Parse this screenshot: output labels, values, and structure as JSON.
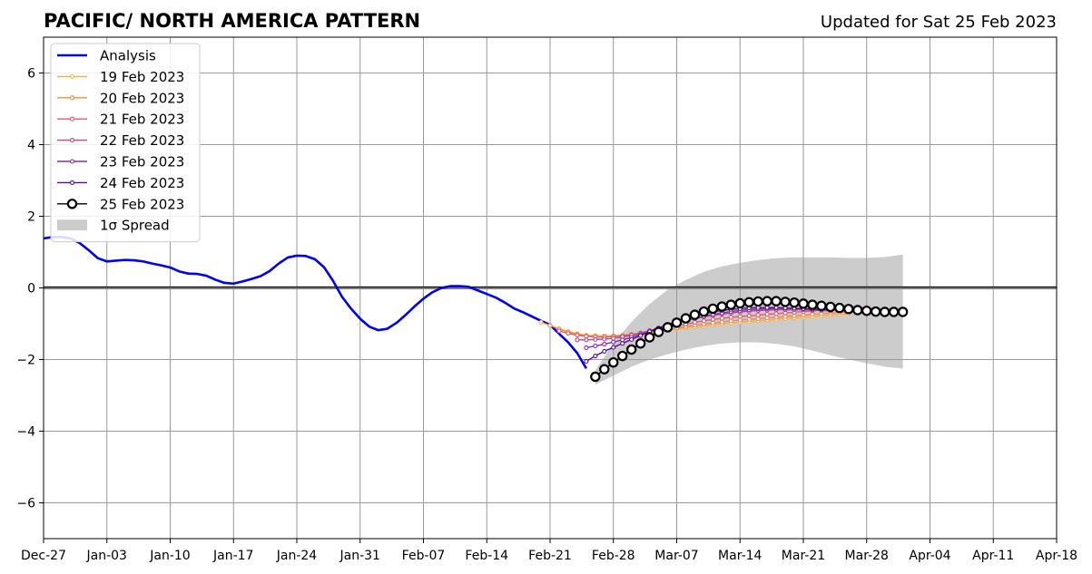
{
  "header": {
    "title": "PACIFIC/ NORTH AMERICA PATTERN",
    "updated": "Updated for Sat 25 Feb 2023"
  },
  "chart_data": {
    "type": "line",
    "title": "PACIFIC/ NORTH AMERICA PATTERN",
    "subtitle": "Updated for Sat 25 Feb 2023",
    "xlabel": "",
    "ylabel": "",
    "xlim": [
      "2022-12-27",
      "2023-04-18"
    ],
    "ylim": [
      -7,
      7
    ],
    "x_tick_labels": [
      "Dec-27",
      "Jan-03",
      "Jan-10",
      "Jan-17",
      "Jan-24",
      "Jan-31",
      "Feb-07",
      "Feb-14",
      "Feb-21",
      "Feb-28",
      "Mar-07",
      "Mar-14",
      "Mar-21",
      "Mar-28",
      "Apr-04",
      "Apr-11",
      "Apr-18"
    ],
    "x_tick_dates": [
      "2022-12-27",
      "2023-01-03",
      "2023-01-10",
      "2023-01-17",
      "2023-01-24",
      "2023-01-31",
      "2023-02-07",
      "2023-02-14",
      "2023-02-21",
      "2023-02-28",
      "2023-03-07",
      "2023-03-14",
      "2023-03-21",
      "2023-03-28",
      "2023-04-04",
      "2023-04-11",
      "2023-04-18"
    ],
    "y_ticks": [
      -6,
      -4,
      -2,
      0,
      2,
      4,
      6
    ],
    "y_tick_labels": [
      "−6",
      "−4",
      "−2",
      "0",
      "2",
      "4",
      "6"
    ],
    "grid": true,
    "legend_position": "top-left",
    "zero_line": true,
    "colors": {
      "Analysis": "#0000ee",
      "19 Feb 2023": "#fbb040",
      "20 Feb 2023": "#f08a4b",
      "21 Feb 2023": "#e05c6a",
      "22 Feb 2023": "#b8448a",
      "23 Feb 2023": "#8a2bb0",
      "24 Feb 2023": "#52118a",
      "25 Feb 2023": "#000000",
      "spread": "#cccccc",
      "grid": "#999999"
    },
    "spread": {
      "name": "1σ Spread",
      "x": [
        "2023-02-26",
        "2023-02-28",
        "2023-03-02",
        "2023-03-04",
        "2023-03-06",
        "2023-03-08",
        "2023-03-10",
        "2023-03-12",
        "2023-03-14",
        "2023-03-16",
        "2023-03-18",
        "2023-03-20",
        "2023-03-22",
        "2023-03-24",
        "2023-03-26",
        "2023-03-28",
        "2023-03-30",
        "2023-04-01"
      ],
      "upper": [
        -2.3,
        -1.55,
        -0.95,
        -0.45,
        -0.05,
        0.22,
        0.45,
        0.6,
        0.7,
        0.78,
        0.83,
        0.85,
        0.85,
        0.85,
        0.84,
        0.84,
        0.86,
        0.93
      ],
      "lower": [
        -2.7,
        -2.45,
        -2.2,
        -2.0,
        -1.85,
        -1.72,
        -1.62,
        -1.55,
        -1.52,
        -1.52,
        -1.56,
        -1.63,
        -1.75,
        -1.88,
        -2.0,
        -2.1,
        -2.2,
        -2.25
      ]
    },
    "series": [
      {
        "name": "Analysis",
        "marker": "none",
        "x": [
          "2022-12-27",
          "2022-12-28",
          "2022-12-29",
          "2022-12-30",
          "2022-12-31",
          "2023-01-01",
          "2023-01-02",
          "2023-01-03",
          "2023-01-04",
          "2023-01-05",
          "2023-01-06",
          "2023-01-07",
          "2023-01-08",
          "2023-01-09",
          "2023-01-10",
          "2023-01-11",
          "2023-01-12",
          "2023-01-13",
          "2023-01-14",
          "2023-01-15",
          "2023-01-16",
          "2023-01-17",
          "2023-01-18",
          "2023-01-19",
          "2023-01-20",
          "2023-01-21",
          "2023-01-22",
          "2023-01-23",
          "2023-01-24",
          "2023-01-25",
          "2023-01-26",
          "2023-01-27",
          "2023-01-28",
          "2023-01-29",
          "2023-01-30",
          "2023-01-31",
          "2023-02-01",
          "2023-02-02",
          "2023-02-03",
          "2023-02-04",
          "2023-02-05",
          "2023-02-06",
          "2023-02-07",
          "2023-02-08",
          "2023-02-09",
          "2023-02-10",
          "2023-02-11",
          "2023-02-12",
          "2023-02-13",
          "2023-02-14",
          "2023-02-15",
          "2023-02-16",
          "2023-02-17",
          "2023-02-18",
          "2023-02-19",
          "2023-02-20",
          "2023-02-21",
          "2023-02-22",
          "2023-02-23",
          "2023-02-24",
          "2023-02-25"
        ],
        "values": [
          1.38,
          1.42,
          1.42,
          1.38,
          1.25,
          1.05,
          0.83,
          0.74,
          0.76,
          0.78,
          0.77,
          0.74,
          0.68,
          0.63,
          0.57,
          0.46,
          0.4,
          0.39,
          0.34,
          0.23,
          0.14,
          0.12,
          0.18,
          0.25,
          0.33,
          0.47,
          0.68,
          0.85,
          0.9,
          0.89,
          0.8,
          0.58,
          0.2,
          -0.25,
          -0.58,
          -0.86,
          -1.08,
          -1.18,
          -1.14,
          -0.98,
          -0.76,
          -0.52,
          -0.3,
          -0.12,
          0.0,
          0.05,
          0.05,
          0.03,
          -0.07,
          -0.17,
          -0.27,
          -0.41,
          -0.57,
          -0.68,
          -0.8,
          -0.92,
          -1.03,
          -1.28,
          -1.52,
          -1.82,
          -2.25
        ]
      },
      {
        "name": "19 Feb 2023",
        "marker": "small",
        "x": [
          "2023-02-20",
          "2023-02-21",
          "2023-02-22",
          "2023-02-23",
          "2023-02-24",
          "2023-02-25",
          "2023-02-26",
          "2023-02-27",
          "2023-02-28",
          "2023-03-01",
          "2023-03-02",
          "2023-03-03",
          "2023-03-04",
          "2023-03-05",
          "2023-03-06",
          "2023-03-07",
          "2023-03-08",
          "2023-03-09",
          "2023-03-10",
          "2023-03-11",
          "2023-03-12",
          "2023-03-13",
          "2023-03-14",
          "2023-03-15",
          "2023-03-16",
          "2023-03-17",
          "2023-03-18",
          "2023-03-19",
          "2023-03-20",
          "2023-03-21",
          "2023-03-22",
          "2023-03-23",
          "2023-03-24",
          "2023-03-25",
          "2023-03-26"
        ],
        "values": [
          -0.96,
          -1.05,
          -1.14,
          -1.22,
          -1.28,
          -1.32,
          -1.33,
          -1.34,
          -1.33,
          -1.32,
          -1.3,
          -1.27,
          -1.24,
          -1.21,
          -1.18,
          -1.15,
          -1.12,
          -1.09,
          -1.06,
          -1.03,
          -1.0,
          -0.98,
          -0.96,
          -0.94,
          -0.92,
          -0.9,
          -0.88,
          -0.86,
          -0.84,
          -0.82,
          -0.8,
          -0.78,
          -0.76,
          -0.74,
          -0.72
        ]
      },
      {
        "name": "20 Feb 2023",
        "marker": "small",
        "x": [
          "2023-02-21",
          "2023-02-22",
          "2023-02-23",
          "2023-02-24",
          "2023-02-25",
          "2023-02-26",
          "2023-02-27",
          "2023-02-28",
          "2023-03-01",
          "2023-03-02",
          "2023-03-03",
          "2023-03-04",
          "2023-03-05",
          "2023-03-06",
          "2023-03-07",
          "2023-03-08",
          "2023-03-09",
          "2023-03-10",
          "2023-03-11",
          "2023-03-12",
          "2023-03-13",
          "2023-03-14",
          "2023-03-15",
          "2023-03-16",
          "2023-03-17",
          "2023-03-18",
          "2023-03-19",
          "2023-03-20",
          "2023-03-21",
          "2023-03-22",
          "2023-03-23",
          "2023-03-24",
          "2023-03-25",
          "2023-03-26",
          "2023-03-27"
        ],
        "values": [
          -1.05,
          -1.15,
          -1.23,
          -1.3,
          -1.34,
          -1.36,
          -1.37,
          -1.36,
          -1.34,
          -1.31,
          -1.28,
          -1.24,
          -1.2,
          -1.16,
          -1.12,
          -1.08,
          -1.04,
          -1.01,
          -0.98,
          -0.95,
          -0.92,
          -0.9,
          -0.88,
          -0.86,
          -0.84,
          -0.82,
          -0.8,
          -0.78,
          -0.76,
          -0.74,
          -0.72,
          -0.7,
          -0.68,
          -0.67,
          -0.66
        ]
      },
      {
        "name": "21 Feb 2023",
        "marker": "small",
        "x": [
          "2023-02-22",
          "2023-02-23",
          "2023-02-24",
          "2023-02-25",
          "2023-02-26",
          "2023-02-27",
          "2023-02-28",
          "2023-03-01",
          "2023-03-02",
          "2023-03-03",
          "2023-03-04",
          "2023-03-05",
          "2023-03-06",
          "2023-03-07",
          "2023-03-08",
          "2023-03-09",
          "2023-03-10",
          "2023-03-11",
          "2023-03-12",
          "2023-03-13",
          "2023-03-14",
          "2023-03-15",
          "2023-03-16",
          "2023-03-17",
          "2023-03-18",
          "2023-03-19",
          "2023-03-20",
          "2023-03-21",
          "2023-03-22",
          "2023-03-23",
          "2023-03-24",
          "2023-03-25",
          "2023-03-26",
          "2023-03-27",
          "2023-03-28"
        ],
        "values": [
          -1.2,
          -1.27,
          -1.32,
          -1.35,
          -1.37,
          -1.37,
          -1.36,
          -1.33,
          -1.3,
          -1.26,
          -1.21,
          -1.16,
          -1.11,
          -1.06,
          -1.01,
          -0.96,
          -0.92,
          -0.88,
          -0.85,
          -0.82,
          -0.8,
          -0.78,
          -0.76,
          -0.74,
          -0.72,
          -0.7,
          -0.68,
          -0.66,
          -0.64,
          -0.62,
          -0.6,
          -0.58,
          -0.57,
          -0.56,
          -0.55
        ]
      },
      {
        "name": "22 Feb 2023",
        "marker": "small",
        "x": [
          "2023-02-24",
          "2023-02-25",
          "2023-02-26",
          "2023-02-27",
          "2023-02-28",
          "2023-03-01",
          "2023-03-02",
          "2023-03-03",
          "2023-03-04",
          "2023-03-05",
          "2023-03-06",
          "2023-03-07",
          "2023-03-08",
          "2023-03-09",
          "2023-03-10",
          "2023-03-11",
          "2023-03-12",
          "2023-03-13",
          "2023-03-14",
          "2023-03-15",
          "2023-03-16",
          "2023-03-17",
          "2023-03-18",
          "2023-03-19",
          "2023-03-20",
          "2023-03-21",
          "2023-03-22",
          "2023-03-23",
          "2023-03-24"
        ],
        "values": [
          -1.45,
          -1.45,
          -1.44,
          -1.43,
          -1.41,
          -1.37,
          -1.32,
          -1.26,
          -1.19,
          -1.12,
          -1.05,
          -0.98,
          -0.92,
          -0.86,
          -0.81,
          -0.77,
          -0.73,
          -0.7,
          -0.67,
          -0.65,
          -0.63,
          -0.62,
          -0.61,
          -0.61,
          -0.61,
          -0.61,
          -0.62,
          -0.63,
          -0.64
        ]
      },
      {
        "name": "23 Feb 2023",
        "marker": "small",
        "x": [
          "2023-02-25",
          "2023-02-26",
          "2023-02-27",
          "2023-02-28",
          "2023-03-01",
          "2023-03-02",
          "2023-03-03",
          "2023-03-04",
          "2023-03-05",
          "2023-03-06",
          "2023-03-07",
          "2023-03-08",
          "2023-03-09",
          "2023-03-10",
          "2023-03-11",
          "2023-03-12",
          "2023-03-13",
          "2023-03-14",
          "2023-03-15",
          "2023-03-16",
          "2023-03-17",
          "2023-03-18",
          "2023-03-19",
          "2023-03-20",
          "2023-03-21",
          "2023-03-22",
          "2023-03-23",
          "2023-03-24",
          "2023-03-25"
        ],
        "values": [
          -1.67,
          -1.62,
          -1.57,
          -1.51,
          -1.45,
          -1.38,
          -1.3,
          -1.22,
          -1.14,
          -1.06,
          -0.98,
          -0.91,
          -0.85,
          -0.79,
          -0.74,
          -0.7,
          -0.66,
          -0.63,
          -0.61,
          -0.59,
          -0.58,
          -0.57,
          -0.57,
          -0.57,
          -0.58,
          -0.59,
          -0.6,
          -0.61,
          -0.62
        ]
      },
      {
        "name": "24 Feb 2023",
        "marker": "small",
        "x": [
          "2023-02-25",
          "2023-02-26",
          "2023-02-27",
          "2023-02-28",
          "2023-03-01",
          "2023-03-02",
          "2023-03-03",
          "2023-03-04",
          "2023-03-05",
          "2023-03-06",
          "2023-03-07",
          "2023-03-08",
          "2023-03-09",
          "2023-03-10",
          "2023-03-11",
          "2023-03-12",
          "2023-03-13",
          "2023-03-14",
          "2023-03-15",
          "2023-03-16",
          "2023-03-17",
          "2023-03-18",
          "2023-03-19",
          "2023-03-20",
          "2023-03-21",
          "2023-03-22",
          "2023-03-23",
          "2023-03-24",
          "2023-03-25",
          "2023-03-26"
        ],
        "values": [
          -2.05,
          -1.9,
          -1.77,
          -1.66,
          -1.55,
          -1.44,
          -1.33,
          -1.22,
          -1.12,
          -1.02,
          -0.93,
          -0.85,
          -0.78,
          -0.72,
          -0.67,
          -0.63,
          -0.6,
          -0.58,
          -0.56,
          -0.55,
          -0.55,
          -0.55,
          -0.56,
          -0.57,
          -0.58,
          -0.59,
          -0.6,
          -0.61,
          -0.62,
          -0.63
        ]
      },
      {
        "name": "25 Feb 2023",
        "marker": "large",
        "x": [
          "2023-02-26",
          "2023-02-27",
          "2023-02-28",
          "2023-03-01",
          "2023-03-02",
          "2023-03-03",
          "2023-03-04",
          "2023-03-05",
          "2023-03-06",
          "2023-03-07",
          "2023-03-08",
          "2023-03-09",
          "2023-03-10",
          "2023-03-11",
          "2023-03-12",
          "2023-03-13",
          "2023-03-14",
          "2023-03-15",
          "2023-03-16",
          "2023-03-17",
          "2023-03-18",
          "2023-03-19",
          "2023-03-20",
          "2023-03-21",
          "2023-03-22",
          "2023-03-23",
          "2023-03-24",
          "2023-03-25",
          "2023-03-26",
          "2023-03-27",
          "2023-03-28",
          "2023-03-29",
          "2023-03-30",
          "2023-03-31",
          "2023-04-01"
        ],
        "values": [
          -2.48,
          -2.27,
          -2.08,
          -1.9,
          -1.72,
          -1.55,
          -1.38,
          -1.23,
          -1.1,
          -0.97,
          -0.85,
          -0.75,
          -0.66,
          -0.58,
          -0.52,
          -0.47,
          -0.43,
          -0.4,
          -0.38,
          -0.37,
          -0.37,
          -0.39,
          -0.41,
          -0.44,
          -0.47,
          -0.5,
          -0.53,
          -0.56,
          -0.59,
          -0.62,
          -0.64,
          -0.66,
          -0.67,
          -0.67,
          -0.67
        ]
      }
    ],
    "legend": [
      "Analysis",
      "19 Feb 2023",
      "20 Feb 2023",
      "21 Feb 2023",
      "22 Feb 2023",
      "23 Feb 2023",
      "24 Feb 2023",
      "25 Feb 2023",
      "1σ Spread"
    ]
  }
}
